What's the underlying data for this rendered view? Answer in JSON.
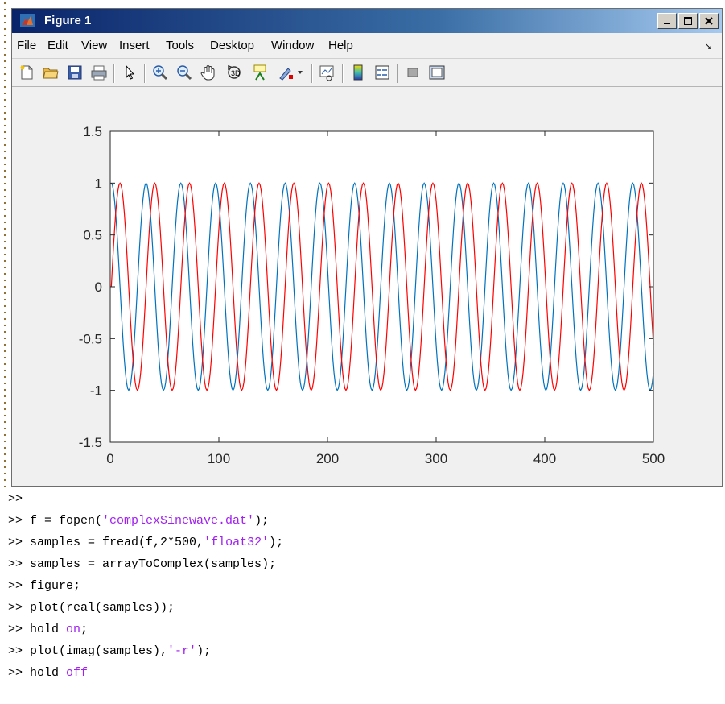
{
  "window": {
    "title": "Figure 1",
    "menu": [
      "File",
      "Edit",
      "View",
      "Insert",
      "Tools",
      "Desktop",
      "Window",
      "Help"
    ],
    "menu_overflow_icon": "arrow-icon",
    "toolbar_icons": [
      "new-figure-icon",
      "open-file-icon",
      "save-icon",
      "print-icon",
      "pointer-icon",
      "zoom-in-icon",
      "zoom-out-icon",
      "pan-hand-icon",
      "rotate-3d-icon",
      "data-cursor-icon",
      "brush-icon",
      "link-plot-icon",
      "colorbar-icon",
      "legend-icon",
      "hide-plot-tools-icon",
      "show-plot-tools-icon"
    ]
  },
  "colors": {
    "blue": "#0072bd",
    "red": "#ff0000",
    "axes_bg": "#ffffff",
    "figure_bg": "#f0f0f0",
    "string": "#a020f0"
  },
  "chart_data": {
    "type": "line",
    "title": "",
    "xlabel": "",
    "ylabel": "",
    "xlim": [
      0,
      500
    ],
    "ylim": [
      -1.5,
      1.5
    ],
    "xticks": [
      0,
      100,
      200,
      300,
      400,
      500
    ],
    "xtick_labels": [
      "0",
      "100",
      "200",
      "300",
      "400",
      "500"
    ],
    "yticks": [
      -1.5,
      -1,
      -0.5,
      0,
      0.5,
      1,
      1.5
    ],
    "ytick_labels": [
      "-1.5",
      "-1",
      "-0.5",
      "0",
      "0.5",
      "1",
      "1.5"
    ],
    "grid": false,
    "series": [
      {
        "color": "#0072bd",
        "function": "cos",
        "period_samples": 32,
        "amplitude": 1,
        "x_start": 1,
        "x_end": 500
      },
      {
        "color": "#ff0000",
        "function": "sin",
        "period_samples": 32,
        "amplitude": 1,
        "x_start": 1,
        "x_end": 500
      }
    ]
  },
  "command_window": {
    "prompt": ">>",
    "lines": [
      {
        "parts": [
          {
            "t": "",
            "c": "n"
          }
        ]
      },
      {
        "parts": [
          {
            "t": "f = fopen(",
            "c": "n"
          },
          {
            "t": "'complexSinewave.dat'",
            "c": "s"
          },
          {
            "t": ");",
            "c": "n"
          }
        ]
      },
      {
        "parts": [
          {
            "t": "samples = fread(f,2*500,",
            "c": "n"
          },
          {
            "t": "'float32'",
            "c": "s"
          },
          {
            "t": ");",
            "c": "n"
          }
        ]
      },
      {
        "parts": [
          {
            "t": "samples = arrayToComplex(samples);",
            "c": "n"
          }
        ]
      },
      {
        "parts": [
          {
            "t": "figure;",
            "c": "n"
          }
        ]
      },
      {
        "parts": [
          {
            "t": "plot(real(samples));",
            "c": "n"
          }
        ]
      },
      {
        "parts": [
          {
            "t": "hold ",
            "c": "n"
          },
          {
            "t": "on",
            "c": "s"
          },
          {
            "t": ";",
            "c": "n"
          }
        ]
      },
      {
        "parts": [
          {
            "t": "plot(imag(samples),",
            "c": "n"
          },
          {
            "t": "'-r'",
            "c": "s"
          },
          {
            "t": ");",
            "c": "n"
          }
        ]
      },
      {
        "parts": [
          {
            "t": "hold ",
            "c": "n"
          },
          {
            "t": "off",
            "c": "s"
          }
        ]
      }
    ]
  }
}
